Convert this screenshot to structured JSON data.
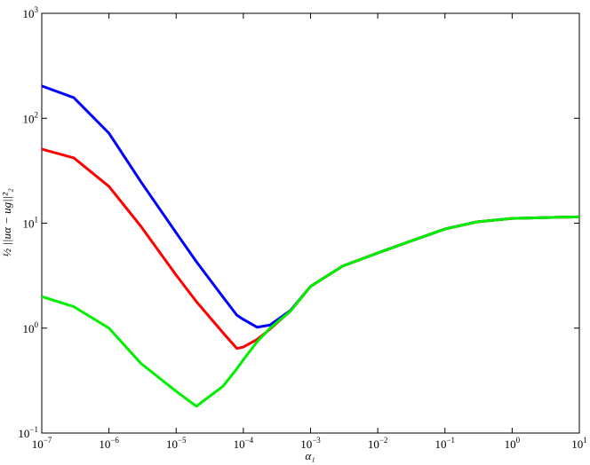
{
  "chart_data": {
    "type": "line",
    "x_label": "α₁",
    "y_label": "½ ||uα − ug||²₂",
    "x_scale": "log",
    "y_scale": "log",
    "xlim": [
      1e-07,
      10
    ],
    "ylim": [
      0.1,
      1000
    ],
    "xticks": [
      {
        "value": 1e-07,
        "label": "10^-7"
      },
      {
        "value": 1e-06,
        "label": "10^-6"
      },
      {
        "value": 1e-05,
        "label": "10^-5"
      },
      {
        "value": 0.0001,
        "label": "10^-4"
      },
      {
        "value": 0.001,
        "label": "10^-3"
      },
      {
        "value": 0.01,
        "label": "10^-2"
      },
      {
        "value": 0.1,
        "label": "10^-1"
      },
      {
        "value": 1,
        "label": "10^0"
      },
      {
        "value": 10,
        "label": "10^1"
      }
    ],
    "yticks": [
      {
        "value": 0.1,
        "label": "10^-1"
      },
      {
        "value": 1,
        "label": "10^0"
      },
      {
        "value": 10,
        "label": "10^1"
      },
      {
        "value": 100,
        "label": "10^2"
      },
      {
        "value": 1000,
        "label": "10^3"
      }
    ],
    "x": [
      1e-07,
      3e-07,
      1e-06,
      3e-06,
      1e-05,
      2e-05,
      5e-05,
      8e-05,
      0.0001,
      0.00016,
      0.00025,
      0.0005,
      0.001,
      0.003,
      0.01,
      0.03,
      0.1,
      0.3,
      1,
      3,
      10
    ],
    "series": [
      {
        "color": "#0000ff",
        "values": [
          203,
          157,
          72,
          24.7,
          8.1,
          4.3,
          1.97,
          1.33,
          1.21,
          1.02,
          1.07,
          1.47,
          2.5,
          3.9,
          5.2,
          6.7,
          8.8,
          10.3,
          11.1,
          11.3,
          11.5
        ]
      },
      {
        "color": "#ff0000",
        "values": [
          50.8,
          41.9,
          22.4,
          9.3,
          3.2,
          1.79,
          0.9,
          0.64,
          0.66,
          0.78,
          0.98,
          1.45,
          2.5,
          3.9,
          5.2,
          6.7,
          8.8,
          10.3,
          11.1,
          11.3,
          11.5
        ]
      },
      {
        "color": "#00ee00",
        "values": [
          2.0,
          1.6,
          1.0,
          0.46,
          0.25,
          0.18,
          0.28,
          0.41,
          0.5,
          0.74,
          1.0,
          1.45,
          2.5,
          3.9,
          5.2,
          6.7,
          8.8,
          10.3,
          11.1,
          11.3,
          11.5
        ]
      }
    ]
  }
}
